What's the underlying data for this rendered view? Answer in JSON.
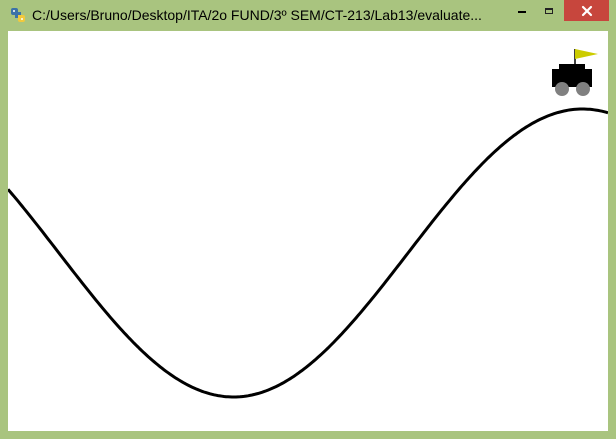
{
  "window": {
    "title": "C:/Users/Bruno/Desktop/ITA/2o FUND/3º SEM/CT-213/Lab13/evaluate...",
    "frame_color": "#a9c47f",
    "close_color": "#c7463d",
    "app_icon": "python-icon"
  },
  "controls": {
    "minimize_icon": "minimize-icon",
    "maximize_icon": "maximize-icon",
    "close_icon": "close-icon"
  },
  "scene": {
    "background": "#ffffff",
    "track_color": "#000000",
    "car_color": "#000000",
    "wheel_color": "#808080",
    "flag_color": "#cccc00"
  }
}
